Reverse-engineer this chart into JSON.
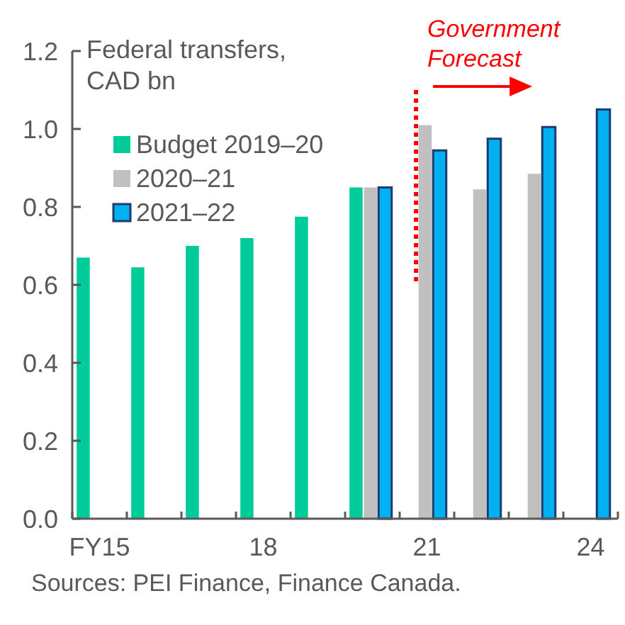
{
  "chart_data": {
    "type": "bar",
    "ylabel": "Federal transfers, CAD bn",
    "categories": [
      "FY15",
      null,
      null,
      "18",
      null,
      null,
      "21",
      null,
      null,
      "24"
    ],
    "series": [
      {
        "name": "Budget 2019–20",
        "color": "#00cc99",
        "values": [
          0.67,
          0.645,
          0.7,
          0.72,
          0.775,
          0.85,
          null,
          null,
          null,
          null
        ]
      },
      {
        "name": "2020–21",
        "color": "#c0c0c0",
        "values": [
          null,
          null,
          null,
          null,
          null,
          0.85,
          1.01,
          0.845,
          0.885,
          null
        ]
      },
      {
        "name": "2021–22",
        "color": "#00b0f0",
        "values": [
          null,
          null,
          null,
          null,
          null,
          0.85,
          0.945,
          0.975,
          1.005,
          1.05
        ]
      }
    ],
    "ylim": [
      0,
      1.2
    ],
    "yticks": [
      {
        "value": 0,
        "label": "0.0"
      },
      {
        "value": 0.2,
        "label": "0.2"
      },
      {
        "value": 0.4,
        "label": "0.4"
      },
      {
        "value": 0.6,
        "label": "0.6"
      },
      {
        "value": 0.8,
        "label": "0.8"
      },
      {
        "value": 1,
        "label": "1.0"
      },
      {
        "value": 1.2,
        "label": "1.2"
      }
    ],
    "grid": false,
    "legend": "top left",
    "ref_lines": [
      {
        "axis": "x",
        "value": "21",
        "label": "Government Forecast",
        "color": "#ff0000",
        "line_style": "dotted"
      }
    ],
    "annotations": [
      "Sources: PEI Finance, Finance Canada."
    ]
  }
}
